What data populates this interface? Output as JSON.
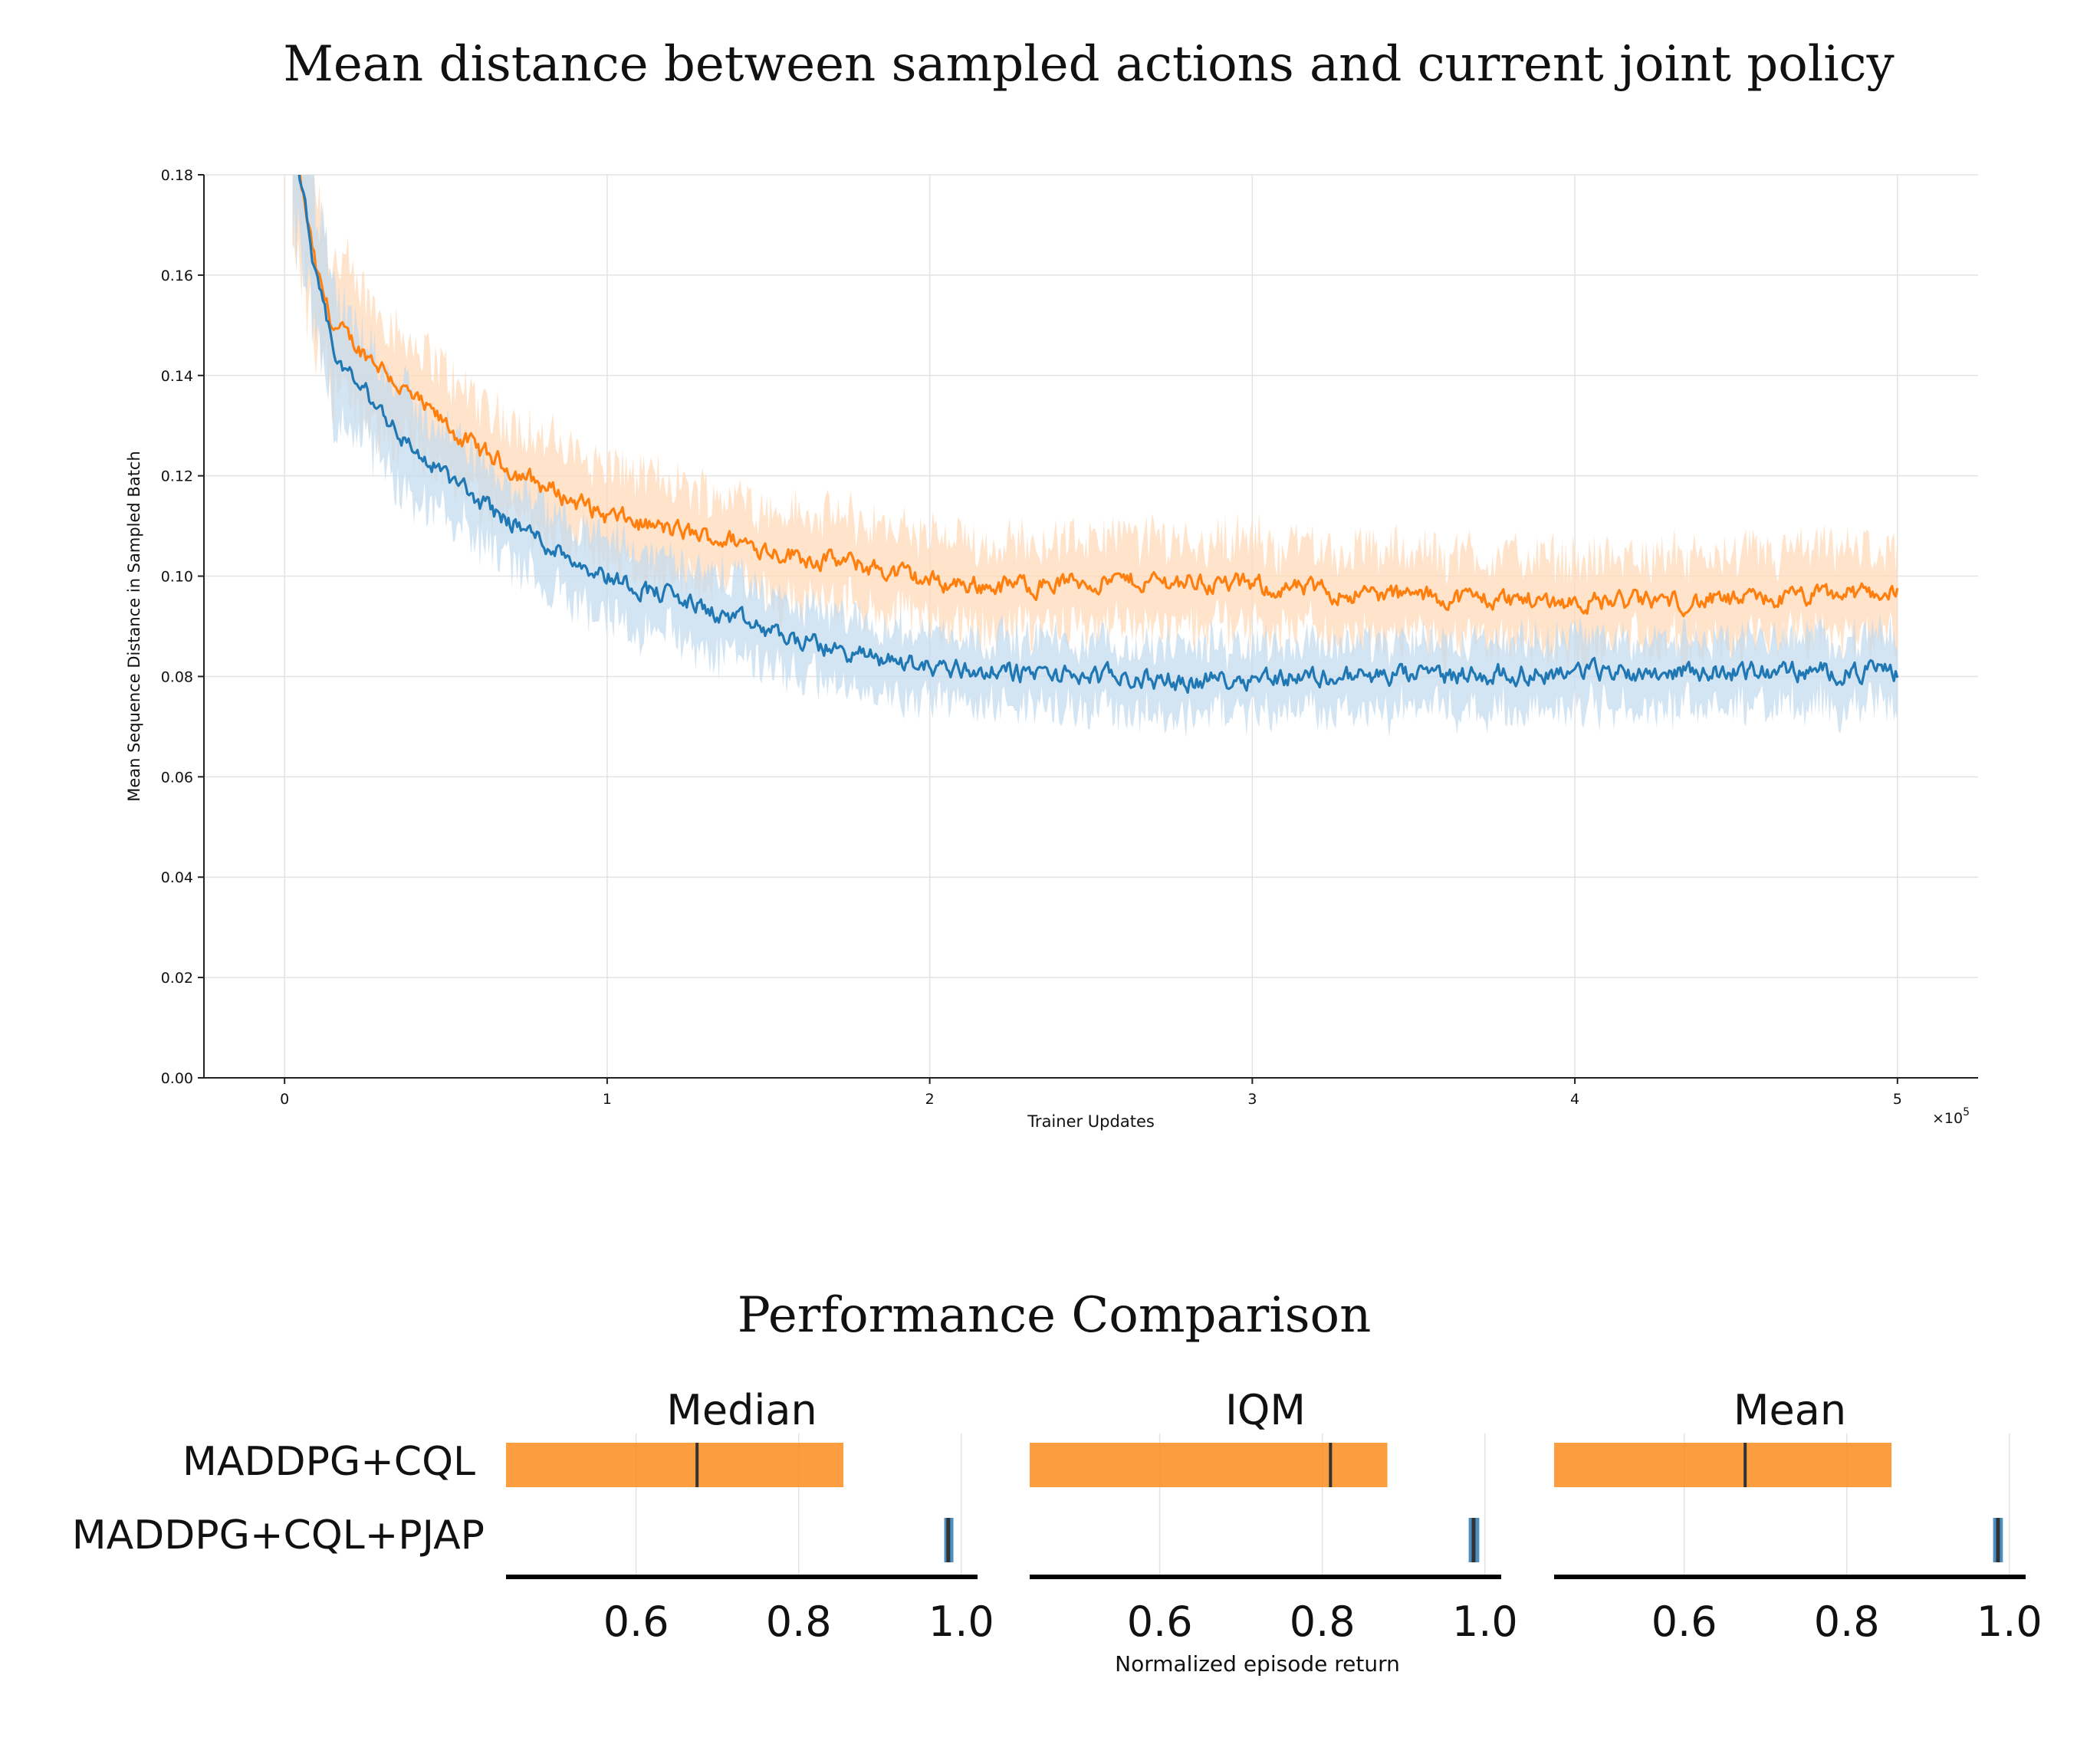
{
  "figure": {
    "top_title": "Mean distance between sampled actions and current joint policy",
    "bottom_title": "Performance Comparison"
  },
  "chart_data": [
    {
      "type": "line",
      "title": "Mean distance between sampled actions and current joint policy",
      "xlabel": "Trainer Updates",
      "ylabel": "Mean Sequence Distance in Sampled Batch",
      "x_scale_label": "×10",
      "x_scale_exponent": "5",
      "x_ticks": [
        "0",
        "1",
        "2",
        "3",
        "4",
        "5"
      ],
      "x_tick_values": [
        0,
        100000,
        200000,
        300000,
        400000,
        500000
      ],
      "y_ticks": [
        "0.00",
        "0.02",
        "0.04",
        "0.06",
        "0.08",
        "0.10",
        "0.12",
        "0.14",
        "0.16",
        "0.18"
      ],
      "y_tick_values": [
        0.0,
        0.02,
        0.04,
        0.06,
        0.08,
        0.1,
        0.12,
        0.14,
        0.16,
        0.18
      ],
      "xlim": [
        -25000,
        525000
      ],
      "ylim": [
        0.0,
        0.18
      ],
      "grid": true,
      "series": [
        {
          "color": "#ff7f0e",
          "band_color": "#ffd9b8",
          "x": [
            2500,
            5000,
            10000,
            15000,
            20000,
            30000,
            40000,
            50000,
            60000,
            80000,
            100000,
            120000,
            140000,
            160000,
            180000,
            200000,
            220000,
            250000,
            280000,
            300000,
            320000,
            350000,
            400000,
            450000,
            500000
          ],
          "values": [
            0.185,
            0.178,
            0.16,
            0.15,
            0.147,
            0.142,
            0.135,
            0.13,
            0.125,
            0.118,
            0.112,
            0.109,
            0.107,
            0.104,
            0.102,
            0.099,
            0.098,
            0.099,
            0.099,
            0.098,
            0.097,
            0.096,
            0.095,
            0.095,
            0.097
          ],
          "band": [
            0.02,
            0.02,
            0.018,
            0.016,
            0.014,
            0.013,
            0.012,
            0.012,
            0.011,
            0.011,
            0.011,
            0.011,
            0.01,
            0.01,
            0.01,
            0.01,
            0.01,
            0.01,
            0.01,
            0.01,
            0.01,
            0.01,
            0.01,
            0.01,
            0.01
          ]
        },
        {
          "color": "#1f77b4",
          "band_color": "#c4dbee",
          "x": [
            2500,
            5000,
            10000,
            15000,
            20000,
            30000,
            40000,
            50000,
            60000,
            80000,
            100000,
            120000,
            140000,
            160000,
            180000,
            200000,
            220000,
            250000,
            280000,
            300000,
            320000,
            350000,
            400000,
            450000,
            500000
          ],
          "values": [
            0.185,
            0.178,
            0.158,
            0.145,
            0.14,
            0.133,
            0.125,
            0.12,
            0.115,
            0.107,
            0.1,
            0.096,
            0.091,
            0.087,
            0.084,
            0.082,
            0.081,
            0.08,
            0.079,
            0.08,
            0.08,
            0.08,
            0.081,
            0.081,
            0.081
          ],
          "band": [
            0.02,
            0.018,
            0.016,
            0.014,
            0.013,
            0.012,
            0.011,
            0.01,
            0.01,
            0.009,
            0.009,
            0.009,
            0.009,
            0.008,
            0.008,
            0.008,
            0.008,
            0.008,
            0.008,
            0.008,
            0.008,
            0.008,
            0.008,
            0.008,
            0.008
          ]
        }
      ]
    },
    {
      "type": "bar",
      "title": "Performance Comparison",
      "xlabel": "Normalized episode return",
      "xlim": [
        0.44,
        1.02
      ],
      "x_ticks": [
        "0.6",
        "0.8",
        "1.0"
      ],
      "x_tick_values": [
        0.6,
        0.8,
        1.0
      ],
      "methods": [
        {
          "name": "MADDPG+CQL",
          "color": "#fb8c1e"
        },
        {
          "name": "MADDPG+CQL+PJAP",
          "color": "#2b7bb9"
        }
      ],
      "panels": [
        {
          "title": "Median",
          "intervals": [
            {
              "method": "MADDPG+CQL",
              "low": 0.44,
              "high": 0.855,
              "point": 0.675
            },
            {
              "method": "MADDPG+CQL+PJAP",
              "low": 0.979,
              "high": 0.99,
              "point": 0.984
            }
          ]
        },
        {
          "title": "IQM",
          "intervals": [
            {
              "method": "MADDPG+CQL",
              "low": 0.44,
              "high": 0.88,
              "point": 0.81
            },
            {
              "method": "MADDPG+CQL+PJAP",
              "low": 0.98,
              "high": 0.993,
              "point": 0.986
            }
          ]
        },
        {
          "title": "Mean",
          "intervals": [
            {
              "method": "MADDPG+CQL",
              "low": 0.44,
              "high": 0.855,
              "point": 0.675
            },
            {
              "method": "MADDPG+CQL+PJAP",
              "low": 0.98,
              "high": 0.992,
              "point": 0.986
            }
          ]
        }
      ]
    }
  ]
}
